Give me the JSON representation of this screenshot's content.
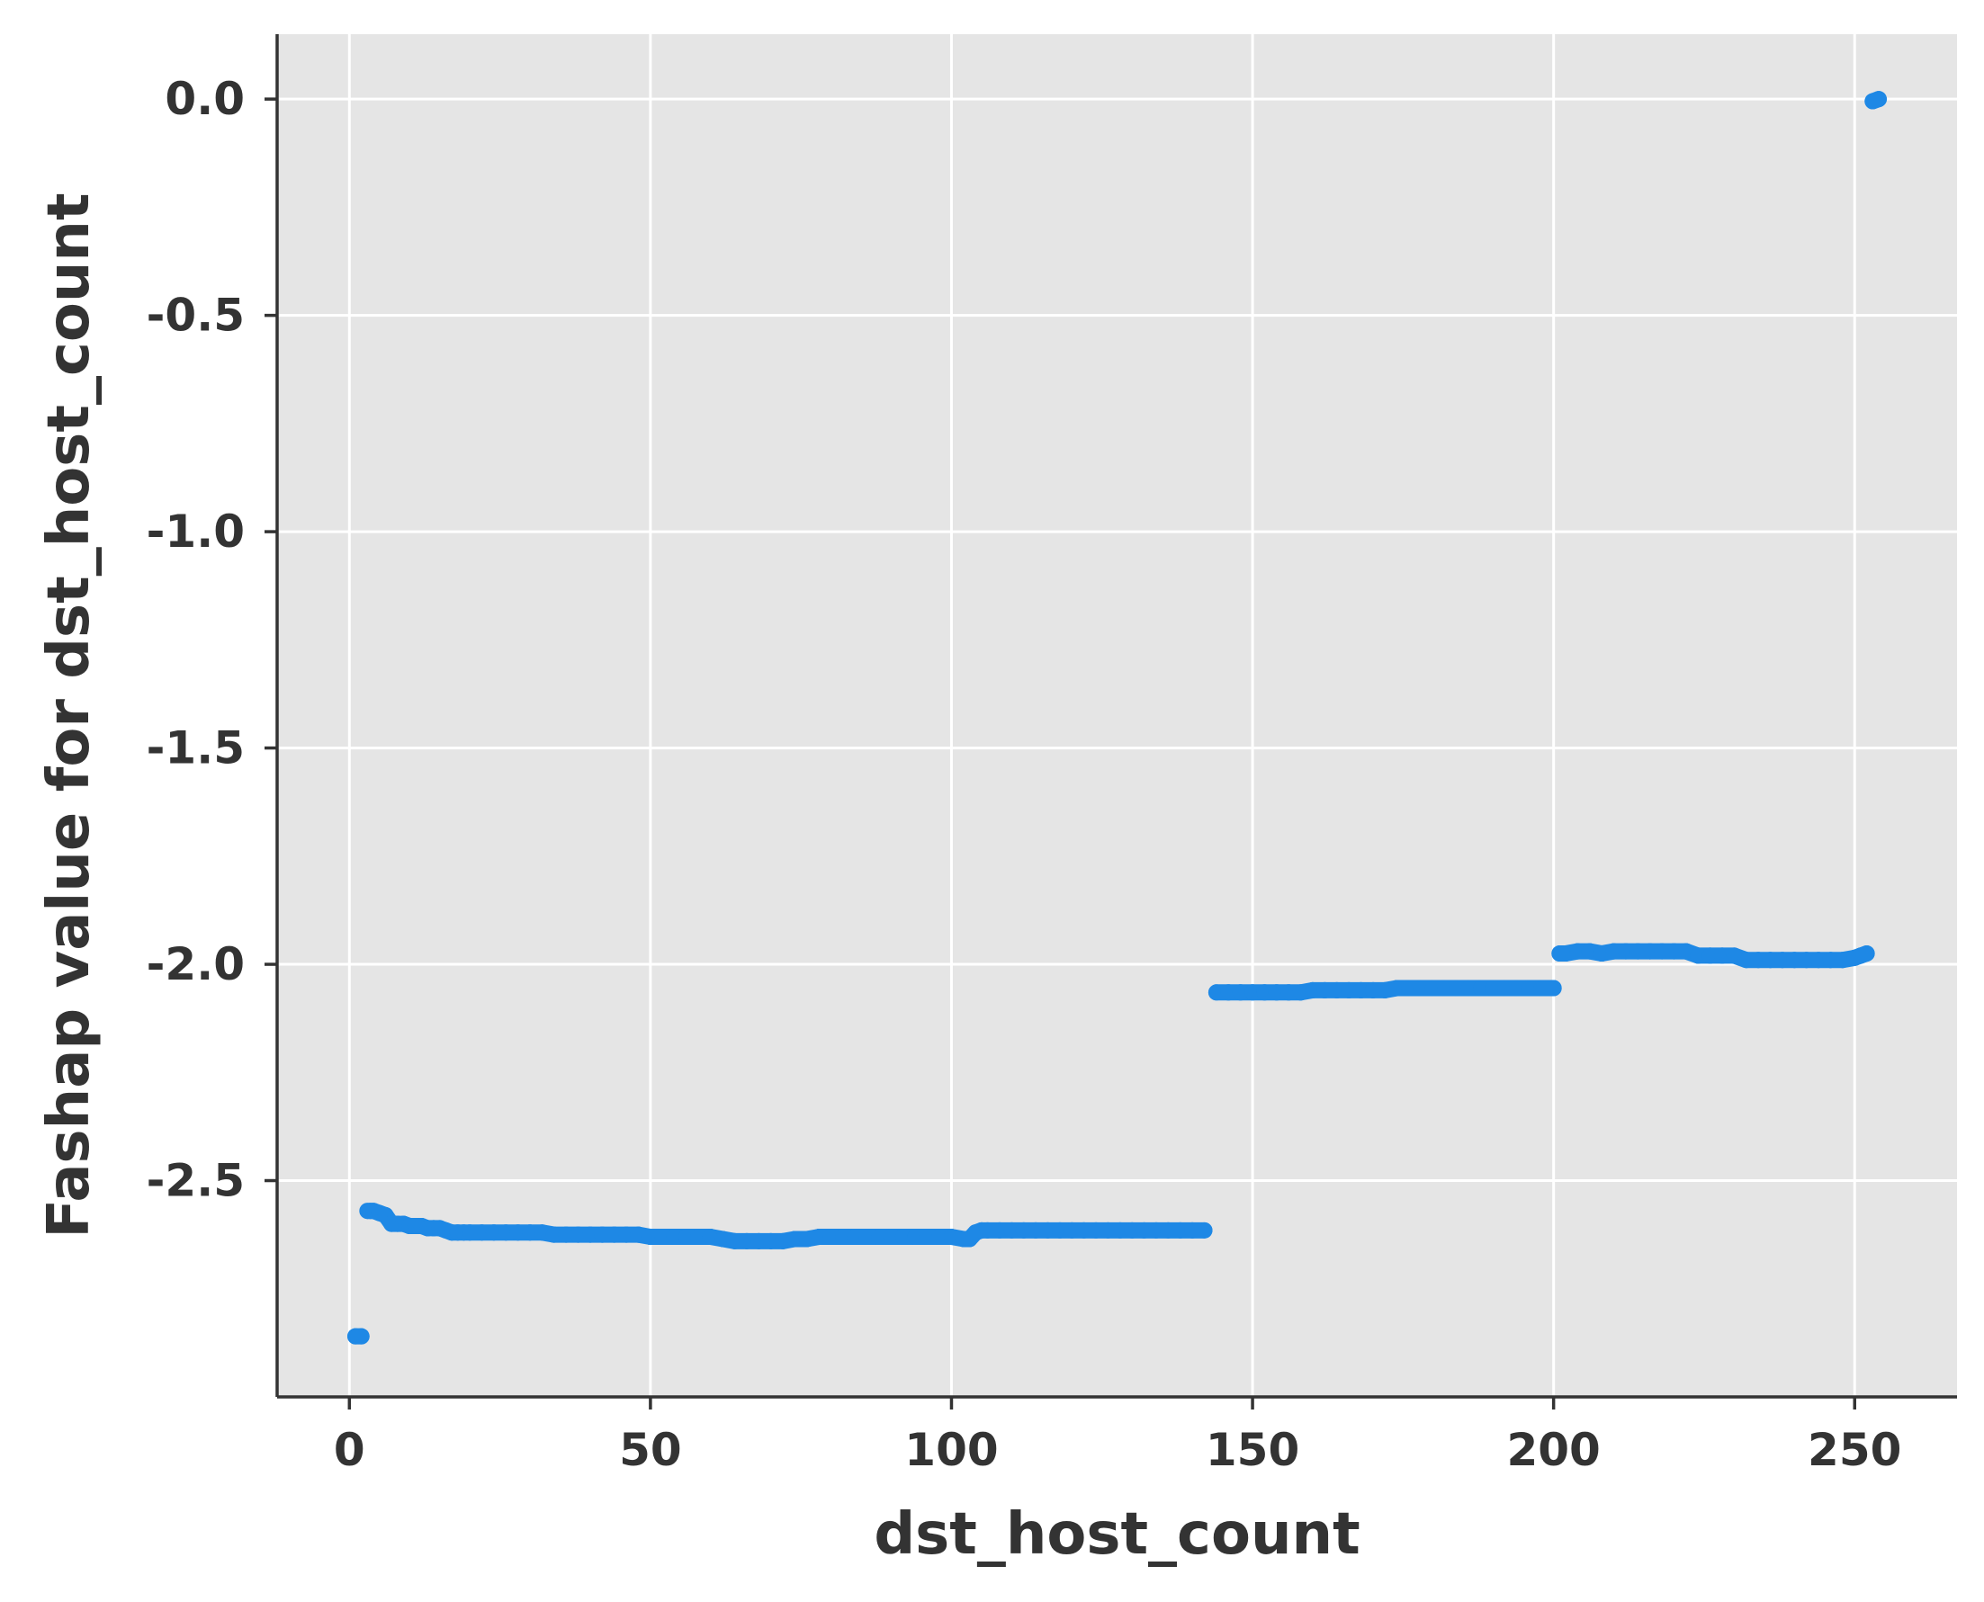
{
  "chart_data": {
    "type": "scatter",
    "title": "",
    "xlabel": "dst_host_count",
    "ylabel": "Fashap value for dst_host_count",
    "xlim": [
      -12,
      267
    ],
    "ylim": [
      -3.0,
      0.15
    ],
    "xticks": [
      0,
      50,
      100,
      150,
      200,
      250
    ],
    "xtick_labels": [
      "0",
      "50",
      "100",
      "150",
      "200",
      "250"
    ],
    "yticks": [
      0.0,
      -0.5,
      -1.0,
      -1.5,
      -2.0,
      -2.5
    ],
    "ytick_labels": [
      "0.0",
      "-0.5",
      "-1.0",
      "-1.5",
      "-2.0",
      "-2.5"
    ],
    "grid": true,
    "background": "#e5e5e5",
    "point_color": "#1e88e5",
    "series": [
      {
        "x": [
          1,
          2,
          3,
          3.5,
          4,
          5,
          6,
          7,
          8,
          9,
          10,
          11,
          12,
          13,
          14,
          15,
          16,
          17,
          18,
          19,
          20,
          22,
          24,
          26,
          28,
          30,
          32,
          34,
          36,
          38,
          40,
          42,
          44,
          46,
          48,
          50,
          52,
          54,
          56,
          58,
          60,
          62,
          64,
          66,
          68,
          70,
          72,
          74,
          76,
          78,
          80,
          82,
          84,
          86,
          88,
          90,
          92,
          94,
          96,
          98,
          100,
          102,
          103,
          104,
          105,
          106,
          108,
          110,
          112,
          114,
          116,
          118,
          120,
          122,
          124,
          126,
          128,
          130,
          132,
          134,
          136,
          138,
          140,
          142,
          144,
          146,
          148,
          150,
          152,
          154,
          156,
          158,
          160,
          162,
          164,
          166,
          168,
          170,
          172,
          174,
          176,
          178,
          180,
          182,
          184,
          186,
          188,
          190,
          192,
          194,
          196,
          198,
          200,
          201,
          202,
          204,
          206,
          208,
          210,
          212,
          214,
          216,
          218,
          220,
          222,
          224,
          226,
          228,
          230,
          232,
          234,
          236,
          238,
          240,
          242,
          244,
          246,
          248,
          250,
          251,
          252,
          253,
          254
        ],
        "y": [
          -2.86,
          -2.86,
          -2.57,
          -2.57,
          -2.57,
          -2.575,
          -2.58,
          -2.6,
          -2.6,
          -2.6,
          -2.605,
          -2.605,
          -2.605,
          -2.61,
          -2.61,
          -2.61,
          -2.615,
          -2.62,
          -2.62,
          -2.62,
          -2.62,
          -2.62,
          -2.62,
          -2.62,
          -2.62,
          -2.62,
          -2.62,
          -2.625,
          -2.625,
          -2.625,
          -2.625,
          -2.625,
          -2.625,
          -2.625,
          -2.625,
          -2.63,
          -2.63,
          -2.63,
          -2.63,
          -2.63,
          -2.63,
          -2.635,
          -2.64,
          -2.64,
          -2.64,
          -2.64,
          -2.64,
          -2.635,
          -2.635,
          -2.63,
          -2.63,
          -2.63,
          -2.63,
          -2.63,
          -2.63,
          -2.63,
          -2.63,
          -2.63,
          -2.63,
          -2.63,
          -2.63,
          -2.635,
          -2.635,
          -2.62,
          -2.615,
          -2.615,
          -2.615,
          -2.615,
          -2.615,
          -2.615,
          -2.615,
          -2.615,
          -2.615,
          -2.615,
          -2.615,
          -2.615,
          -2.615,
          -2.615,
          -2.615,
          -2.615,
          -2.615,
          -2.615,
          -2.615,
          -2.615,
          -2.065,
          -2.065,
          -2.065,
          -2.065,
          -2.065,
          -2.065,
          -2.065,
          -2.065,
          -2.06,
          -2.06,
          -2.06,
          -2.06,
          -2.06,
          -2.06,
          -2.06,
          -2.055,
          -2.055,
          -2.055,
          -2.055,
          -2.055,
          -2.055,
          -2.055,
          -2.055,
          -2.055,
          -2.055,
          -2.055,
          -2.055,
          -2.055,
          -2.055,
          -1.975,
          -1.975,
          -1.97,
          -1.97,
          -1.975,
          -1.97,
          -1.97,
          -1.97,
          -1.97,
          -1.97,
          -1.97,
          -1.97,
          -1.98,
          -1.98,
          -1.98,
          -1.98,
          -1.99,
          -1.99,
          -1.99,
          -1.99,
          -1.99,
          -1.99,
          -1.99,
          -1.99,
          -1.99,
          -1.985,
          -1.98,
          -1.975,
          -0.005,
          0.0
        ]
      }
    ]
  }
}
